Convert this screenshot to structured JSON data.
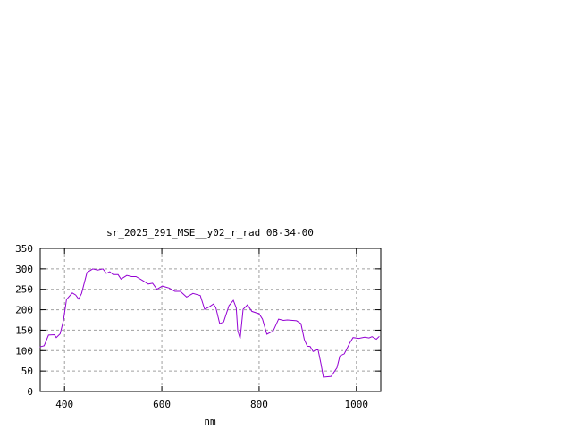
{
  "chart_data": {
    "type": "line",
    "title": "sr_2025_291_MSE__y02_r_rad 08-34-00",
    "xlabel": "nm",
    "ylabel": "",
    "xlim": [
      350,
      1050
    ],
    "ylim": [
      0,
      350
    ],
    "xticks": [
      400,
      600,
      800,
      1000
    ],
    "yticks": [
      0,
      50,
      100,
      150,
      200,
      250,
      300,
      350
    ],
    "grid": true,
    "line_color": "#9400d3",
    "series": [
      {
        "x": [
          349,
          358,
          367,
          379,
          383,
          391,
          398,
          404,
          416,
          423,
          429,
          435,
          446,
          458,
          468,
          479,
          486,
          493,
          500,
          510,
          516,
          528,
          538,
          547,
          560,
          572,
          581,
          590,
          601,
          615,
          627,
          638,
          651,
          664,
          679,
          688,
          697,
          706,
          711,
          719,
          727,
          738,
          747,
          753,
          756,
          761,
          767,
          776,
          785,
          800,
          807,
          816,
          829,
          840,
          850,
          858,
          877,
          886,
          893,
          899,
          905,
          911,
          921,
          927,
          932,
          948,
          960,
          966,
          975,
          987,
          993,
          1005,
          1017,
          1026,
          1032,
          1041,
          1047
        ],
        "y": [
          109,
          112,
          138,
          139,
          132,
          141,
          175,
          225,
          241,
          236,
          226,
          240,
          291,
          300,
          297,
          300,
          289,
          293,
          286,
          286,
          275,
          284,
          281,
          281,
          272,
          263,
          265,
          250,
          258,
          253,
          245,
          245,
          231,
          240,
          235,
          201,
          207,
          214,
          205,
          166,
          170,
          210,
          223,
          205,
          149,
          129,
          201,
          212,
          196,
          190,
          177,
          140,
          148,
          177,
          174,
          175,
          173,
          166,
          127,
          111,
          110,
          98,
          103,
          68,
          35,
          37,
          58,
          87,
          92,
          120,
          132,
          130,
          133,
          131,
          134,
          128,
          135
        ]
      }
    ]
  }
}
